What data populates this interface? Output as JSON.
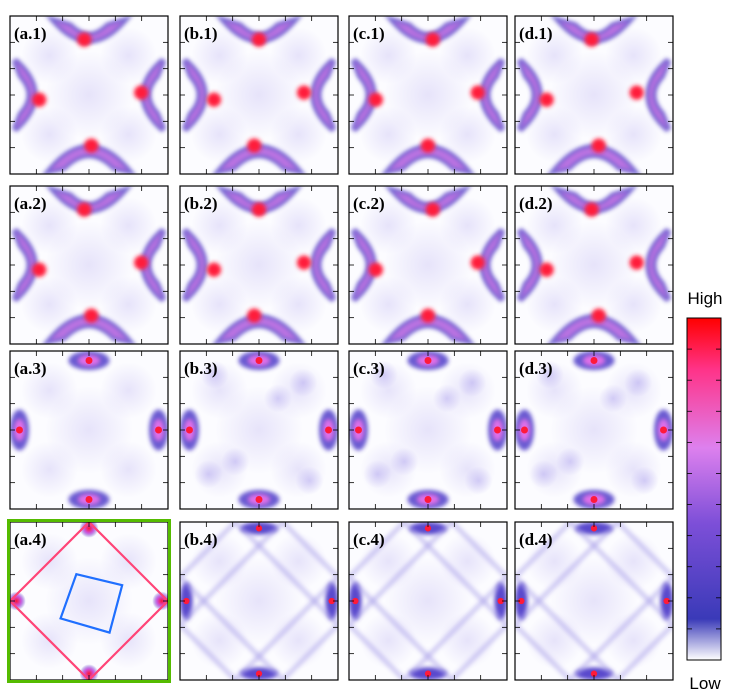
{
  "panels": [
    {
      "id": "a.1",
      "label": "(a.1)",
      "row": 1,
      "col": "a",
      "variant": "X-shaped",
      "highlighted": false
    },
    {
      "id": "b.1",
      "label": "(b.1)",
      "row": 1,
      "col": "b",
      "variant": "X-shaped",
      "highlighted": false
    },
    {
      "id": "c.1",
      "label": "(c.1)",
      "row": 1,
      "col": "c",
      "variant": "X-shaped",
      "highlighted": false
    },
    {
      "id": "d.1",
      "label": "(d.1)",
      "row": 1,
      "col": "d",
      "variant": "X-shaped",
      "highlighted": false
    },
    {
      "id": "a.2",
      "label": "(a.2)",
      "row": 2,
      "col": "a",
      "variant": "X-shaped",
      "highlighted": false
    },
    {
      "id": "b.2",
      "label": "(b.2)",
      "row": 2,
      "col": "b",
      "variant": "X-shaped",
      "highlighted": false
    },
    {
      "id": "c.2",
      "label": "(c.2)",
      "row": 2,
      "col": "c",
      "variant": "X-shaped",
      "highlighted": false
    },
    {
      "id": "d.2",
      "label": "(d.2)",
      "row": 2,
      "col": "d",
      "variant": "X-shaped",
      "highlighted": false
    },
    {
      "id": "a.3",
      "label": "(a.3)",
      "row": 3,
      "col": "a",
      "variant": "edge-pockets",
      "highlighted": false
    },
    {
      "id": "b.3",
      "label": "(b.3)",
      "row": 3,
      "col": "b",
      "variant": "edge-pockets",
      "highlighted": false
    },
    {
      "id": "c.3",
      "label": "(c.3)",
      "row": 3,
      "col": "c",
      "variant": "edge-pockets",
      "highlighted": false
    },
    {
      "id": "d.3",
      "label": "(d.3)",
      "row": 3,
      "col": "d",
      "variant": "edge-pockets",
      "highlighted": false
    },
    {
      "id": "a.4",
      "label": "(a.4)",
      "row": 4,
      "col": "a",
      "variant": "edge-dots-with-squares",
      "highlighted": true
    },
    {
      "id": "b.4",
      "label": "(b.4)",
      "row": 4,
      "col": "b",
      "variant": "diamond-cells",
      "highlighted": false
    },
    {
      "id": "c.4",
      "label": "(c.4)",
      "row": 4,
      "col": "c",
      "variant": "diamond-cells",
      "highlighted": false
    },
    {
      "id": "d.4",
      "label": "(d.4)",
      "row": 4,
      "col": "d",
      "variant": "diamond-cells",
      "highlighted": false
    }
  ],
  "colorbar": {
    "high_label": "High",
    "low_label": "Low",
    "stops": [
      "#ffffff",
      "#3a3ab8",
      "#7d4fd8",
      "#dd80ee",
      "#ff3388",
      "#ff0000"
    ]
  },
  "overlay": {
    "outer_square_color": "#ff4477",
    "inner_square_color": "#1f6fff",
    "highlight_border_color": "#55bb00"
  }
}
